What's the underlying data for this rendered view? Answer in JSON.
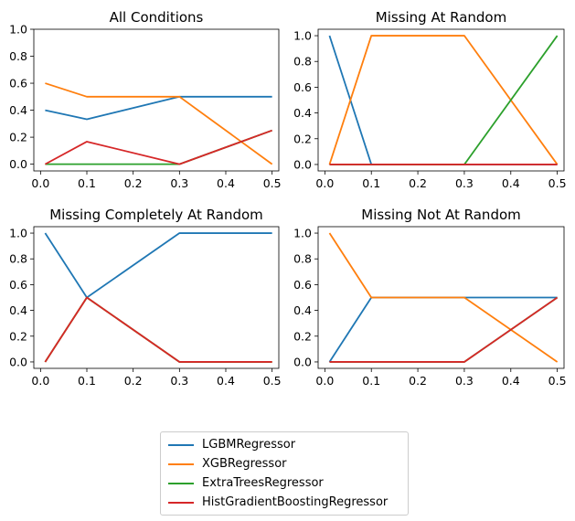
{
  "chart_data": [
    {
      "type": "line",
      "title": "All Conditions",
      "x": [
        0.01,
        0.1,
        0.3,
        0.5
      ],
      "xticks": [
        "0.0",
        "0.1",
        "0.2",
        "0.3",
        "0.4",
        "0.5"
      ],
      "yticks": [
        "0.0",
        "0.2",
        "0.4",
        "0.6",
        "0.8",
        "1.0"
      ],
      "ylim": [
        -0.05,
        1.0
      ],
      "series": [
        {
          "name": "LGBMRegressor",
          "values": [
            0.4,
            0.333,
            0.5,
            0.5
          ]
        },
        {
          "name": "XGBRegressor",
          "values": [
            0.6,
            0.5,
            0.5,
            0.0
          ]
        },
        {
          "name": "ExtraTreesRegressor",
          "values": [
            0.0,
            0.0,
            0.0,
            0.25
          ]
        },
        {
          "name": "HistGradientBoostingRegressor",
          "values": [
            0.0,
            0.167,
            0.0,
            0.25
          ]
        }
      ]
    },
    {
      "type": "line",
      "title": "Missing At Random",
      "x": [
        0.01,
        0.1,
        0.3,
        0.5
      ],
      "xticks": [
        "0.0",
        "0.1",
        "0.2",
        "0.3",
        "0.4",
        "0.5"
      ],
      "yticks": [
        "0.0",
        "0.2",
        "0.4",
        "0.6",
        "0.8",
        "1.0"
      ],
      "ylim": [
        -0.05,
        1.05
      ],
      "series": [
        {
          "name": "LGBMRegressor",
          "values": [
            1.0,
            0.0,
            0.0,
            0.0
          ]
        },
        {
          "name": "XGBRegressor",
          "values": [
            0.0,
            1.0,
            1.0,
            0.0
          ]
        },
        {
          "name": "ExtraTreesRegressor",
          "values": [
            0.0,
            0.0,
            0.0,
            1.0
          ]
        },
        {
          "name": "HistGradientBoostingRegressor",
          "values": [
            0.0,
            0.0,
            0.0,
            0.0
          ]
        }
      ]
    },
    {
      "type": "line",
      "title": "Missing Completely At Random",
      "x": [
        0.01,
        0.1,
        0.3,
        0.5
      ],
      "xticks": [
        "0.0",
        "0.1",
        "0.2",
        "0.3",
        "0.4",
        "0.5"
      ],
      "yticks": [
        "0.0",
        "0.2",
        "0.4",
        "0.6",
        "0.8",
        "1.0"
      ],
      "ylim": [
        -0.05,
        1.05
      ],
      "series": [
        {
          "name": "LGBMRegressor",
          "values": [
            1.0,
            0.5,
            1.0,
            1.0
          ]
        },
        {
          "name": "XGBRegressor",
          "values": [
            0.0,
            0.5,
            0.0,
            0.0
          ]
        },
        {
          "name": "ExtraTreesRegressor",
          "values": [
            0.0,
            0.5,
            0.0,
            0.0
          ]
        },
        {
          "name": "HistGradientBoostingRegressor",
          "values": [
            0.0,
            0.5,
            0.0,
            0.0
          ]
        }
      ]
    },
    {
      "type": "line",
      "title": "Missing Not At Random",
      "x": [
        0.01,
        0.1,
        0.3,
        0.5
      ],
      "xticks": [
        "0.0",
        "0.1",
        "0.2",
        "0.3",
        "0.4",
        "0.5"
      ],
      "yticks": [
        "0.0",
        "0.2",
        "0.4",
        "0.6",
        "0.8",
        "1.0"
      ],
      "ylim": [
        -0.05,
        1.05
      ],
      "series": [
        {
          "name": "LGBMRegressor",
          "values": [
            0.0,
            0.5,
            0.5,
            0.5
          ]
        },
        {
          "name": "XGBRegressor",
          "values": [
            1.0,
            0.5,
            0.5,
            0.0
          ]
        },
        {
          "name": "ExtraTreesRegressor",
          "values": [
            0.0,
            0.0,
            0.0,
            0.5
          ]
        },
        {
          "name": "HistGradientBoostingRegressor",
          "values": [
            0.0,
            0.0,
            0.0,
            0.5
          ]
        }
      ]
    }
  ],
  "legend": {
    "placement": "bottom-center",
    "items": [
      {
        "label": "LGBMRegressor",
        "color": "#1f77b4"
      },
      {
        "label": "XGBRegressor",
        "color": "#ff7f0e"
      },
      {
        "label": "ExtraTreesRegressor",
        "color": "#2ca02c"
      },
      {
        "label": "HistGradientBoostingRegressor",
        "color": "#d62728"
      }
    ]
  },
  "colors": {
    "LGBMRegressor": "#1f77b4",
    "XGBRegressor": "#ff7f0e",
    "ExtraTreesRegressor": "#2ca02c",
    "HistGradientBoostingRegressor": "#d62728"
  }
}
